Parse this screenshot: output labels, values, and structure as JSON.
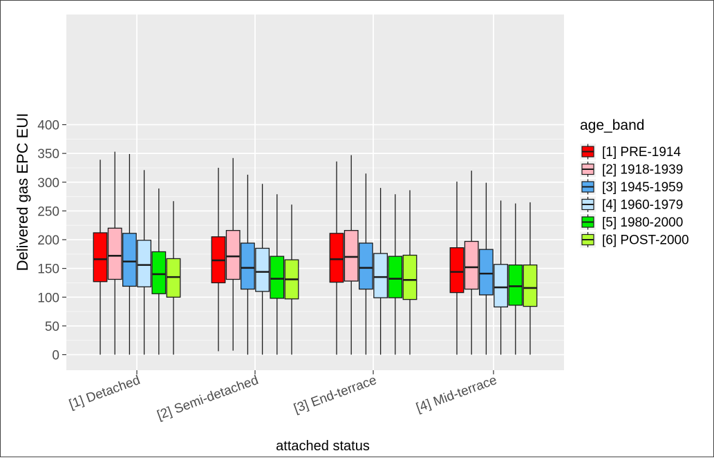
{
  "chart_data": {
    "type": "boxplot",
    "title": "",
    "xlabel": "attached status",
    "ylabel": "Delivered gas EPC EUI",
    "ylim": [
      -20,
      420
    ],
    "y_ticks": [
      0,
      50,
      100,
      150,
      200,
      250,
      300,
      350,
      400
    ],
    "y_tick_labels": [
      "0",
      "50",
      "100",
      "150",
      "200",
      "250",
      "300",
      "350",
      "400"
    ],
    "grid": true,
    "legend_position": "right",
    "legend_title": "age_band",
    "categories": [
      "[1] Detached",
      "[2] Semi-detached",
      "[3] End-terrace",
      "[4] Mid-terrace"
    ],
    "series": [
      {
        "name": "[1] PRE-1914",
        "color": "#ff0000",
        "boxes": [
          {
            "min": 0,
            "q1": 127,
            "median": 166,
            "q3": 212,
            "max": 339
          },
          {
            "min": 6,
            "q1": 125,
            "median": 164,
            "q3": 205,
            "max": 325
          },
          {
            "min": 0,
            "q1": 126,
            "median": 166,
            "q3": 211,
            "max": 336
          },
          {
            "min": 0,
            "q1": 108,
            "median": 144,
            "q3": 186,
            "max": 301
          }
        ]
      },
      {
        "name": "[2] 1918-1939",
        "color": "#ffb6c1",
        "boxes": [
          {
            "min": 0,
            "q1": 131,
            "median": 172,
            "q3": 220,
            "max": 353
          },
          {
            "min": 7,
            "q1": 131,
            "median": 171,
            "q3": 216,
            "max": 342
          },
          {
            "min": 0,
            "q1": 128,
            "median": 170,
            "q3": 216,
            "max": 347
          },
          {
            "min": 0,
            "q1": 114,
            "median": 152,
            "q3": 197,
            "max": 320
          }
        ]
      },
      {
        "name": "[3] 1945-1959",
        "color": "#56aaf0",
        "boxes": [
          {
            "min": 0,
            "q1": 119,
            "median": 162,
            "q3": 211,
            "max": 349
          },
          {
            "min": 0,
            "q1": 114,
            "median": 151,
            "q3": 194,
            "max": 313
          },
          {
            "min": 0,
            "q1": 114,
            "median": 151,
            "q3": 194,
            "max": 315
          },
          {
            "min": 0,
            "q1": 104,
            "median": 141,
            "q3": 183,
            "max": 299
          }
        ]
      },
      {
        "name": "[4] 1960-1979",
        "color": "#bfe5ff",
        "boxes": [
          {
            "min": 0,
            "q1": 118,
            "median": 156,
            "q3": 199,
            "max": 321
          },
          {
            "min": 0,
            "q1": 110,
            "median": 144,
            "q3": 185,
            "max": 297
          },
          {
            "min": 0,
            "q1": 99,
            "median": 135,
            "q3": 176,
            "max": 290
          },
          {
            "min": 0,
            "q1": 83,
            "median": 117,
            "q3": 157,
            "max": 268
          }
        ]
      },
      {
        "name": "[5] 1980-2000",
        "color": "#00ee00",
        "boxes": [
          {
            "min": 0,
            "q1": 106,
            "median": 140,
            "q3": 179,
            "max": 289
          },
          {
            "min": 0,
            "q1": 98,
            "median": 132,
            "q3": 171,
            "max": 279
          },
          {
            "min": 0,
            "q1": 99,
            "median": 132,
            "q3": 171,
            "max": 279
          },
          {
            "min": 0,
            "q1": 86,
            "median": 119,
            "q3": 156,
            "max": 263
          }
        ]
      },
      {
        "name": "[6] POST-2000",
        "color": "#b3ff33",
        "boxes": [
          {
            "min": 0,
            "q1": 100,
            "median": 135,
            "q3": 167,
            "max": 267
          },
          {
            "min": 0,
            "q1": 97,
            "median": 131,
            "q3": 165,
            "max": 261
          },
          {
            "min": 0,
            "q1": 96,
            "median": 130,
            "q3": 173,
            "max": 286
          },
          {
            "min": 0,
            "q1": 84,
            "median": 116,
            "q3": 156,
            "max": 265
          }
        ]
      }
    ]
  }
}
